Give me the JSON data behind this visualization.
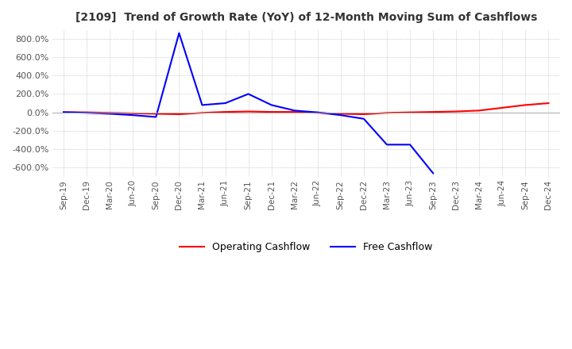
{
  "title": "[2109]  Trend of Growth Rate (YoY) of 12-Month Moving Sum of Cashflows",
  "title_color": "#333333",
  "background_color": "#ffffff",
  "grid_color": "#aaaaaa",
  "legend": [
    "Operating Cashflow",
    "Free Cashflow"
  ],
  "legend_colors": [
    "#ff0000",
    "#0000ff"
  ],
  "x_labels": [
    "Sep-19",
    "Dec-19",
    "Mar-20",
    "Jun-20",
    "Sep-20",
    "Dec-20",
    "Mar-21",
    "Jun-21",
    "Sep-21",
    "Dec-21",
    "Mar-22",
    "Jun-22",
    "Sep-22",
    "Dec-22",
    "Mar-23",
    "Jun-23",
    "Sep-23",
    "Dec-23",
    "Mar-24",
    "Jun-24",
    "Sep-24",
    "Dec-24"
  ],
  "operating_cashflow_x": [
    0,
    1,
    2,
    3,
    4,
    5,
    6,
    7,
    8,
    9,
    10,
    11,
    12,
    13,
    14,
    15,
    16,
    17,
    18,
    19,
    20,
    21
  ],
  "operating_cashflow_y": [
    2.0,
    0.0,
    -5.0,
    -10.0,
    -15.0,
    -20.0,
    -5.0,
    5.0,
    10.0,
    5.0,
    5.0,
    -5.0,
    -15.0,
    -20.0,
    -5.0,
    0.0,
    5.0,
    10.0,
    20.0,
    50.0,
    80.0,
    100.0
  ],
  "free_cashflow_x": [
    0,
    1,
    2,
    3,
    4,
    5,
    6,
    7,
    8,
    9,
    10,
    11,
    12,
    13,
    14,
    15,
    16
  ],
  "free_cashflow_y": [
    2.0,
    -5.0,
    -15.0,
    -30.0,
    -50.0,
    860.0,
    80.0,
    100.0,
    200.0,
    80.0,
    20.0,
    0.0,
    -30.0,
    -70.0,
    -350.0,
    -350.0,
    -660.0
  ],
  "ylim": [
    -700,
    900
  ],
  "yticks": [
    -600,
    -400,
    -200,
    0,
    200,
    400,
    600,
    800
  ],
  "xlim_min": -0.5,
  "xlim_max": 21.5
}
